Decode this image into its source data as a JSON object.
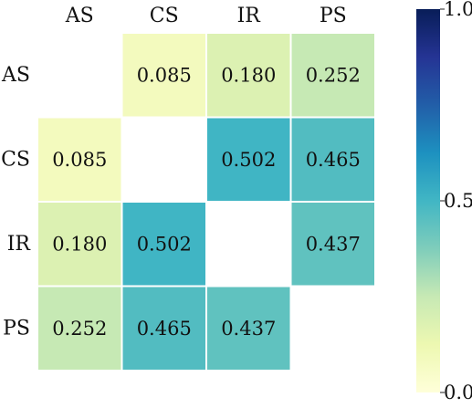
{
  "chart_data": {
    "type": "heatmap",
    "title": "",
    "xlabel": "",
    "ylabel": "",
    "labels": [
      "AS",
      "CS",
      "IR",
      "PS"
    ],
    "matrix": [
      [
        null,
        0.085,
        0.18,
        0.252
      ],
      [
        0.085,
        null,
        0.502,
        0.465
      ],
      [
        0.18,
        0.502,
        null,
        0.437
      ],
      [
        0.252,
        0.465,
        0.437,
        null
      ]
    ],
    "value_labels": [
      [
        "",
        "0.085",
        "0.180",
        "0.252"
      ],
      [
        "0.085",
        "",
        "0.502",
        "0.465"
      ],
      [
        "0.180",
        "0.502",
        "",
        "0.437"
      ],
      [
        "0.252",
        "0.465",
        "0.437",
        ""
      ]
    ],
    "vmin": 0.0,
    "vmax": 1.0,
    "colormap": "YlGnBu",
    "diagonal": "blank",
    "colorbar": {
      "ticks": [
        0.0,
        0.5,
        1.0
      ],
      "tick_labels": [
        "0.0",
        "0.5",
        "1.0"
      ],
      "placement": "right"
    }
  }
}
